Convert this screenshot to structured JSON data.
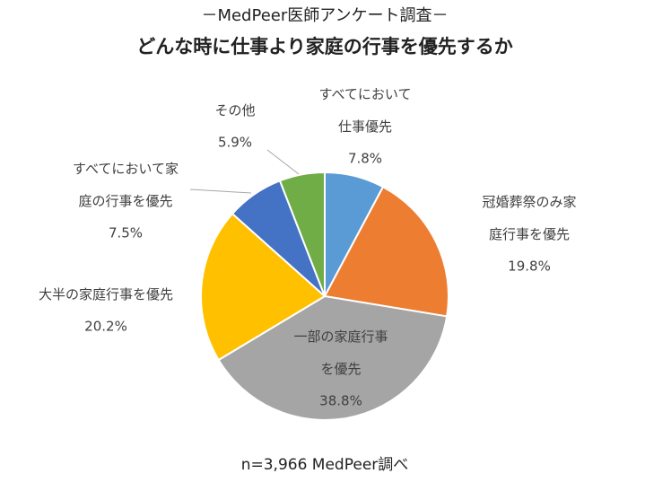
{
  "chart_data": {
    "type": "pie",
    "title": "－MedPeer医師アンケート調査－",
    "subtitle": "どんな時に仕事より家庭の行事を優先するか",
    "note": "n=3,966 MedPeer調べ",
    "categories": [
      "すべてにおいて仕事優先",
      "冠婚葬祭のみ家庭行事を優先",
      "一部の家庭行事を優先",
      "大半の家庭行事を優先",
      "すべてにおいて家庭の行事を優先",
      "その他"
    ],
    "values": [
      7.8,
      19.8,
      38.8,
      20.2,
      7.5,
      5.9
    ],
    "value_labels": [
      "7.8%",
      "19.8%",
      "38.8%",
      "20.2%",
      "7.5%",
      "5.9%"
    ],
    "colors": [
      "#5b9bd5",
      "#ed7d31",
      "#a5a5a5",
      "#ffc000",
      "#4472c4",
      "#70ad47"
    ]
  }
}
